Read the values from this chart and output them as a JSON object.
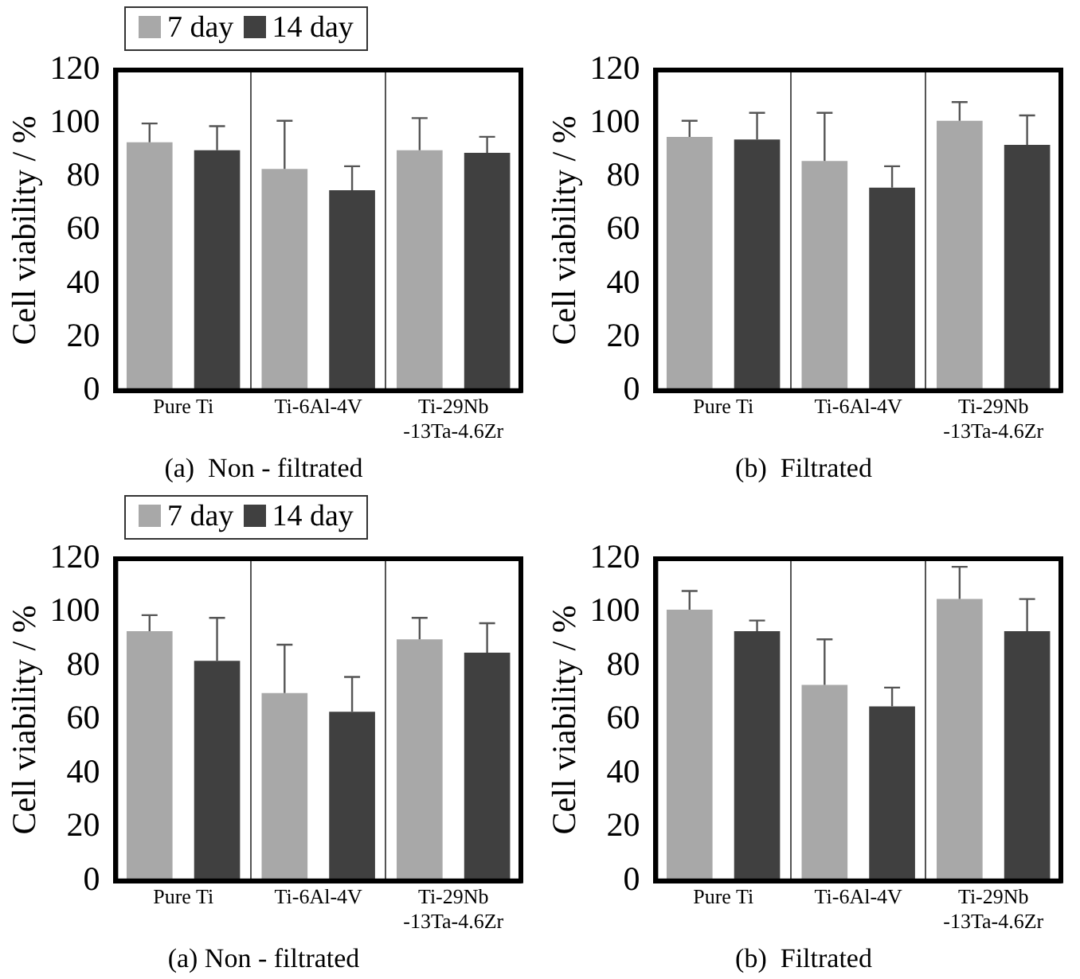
{
  "chart_data": [
    {
      "type": "bar",
      "title": "(a)  Non - filtrated",
      "ylabel": "Cell viability / %",
      "categories": [
        "Pure Ti",
        "Ti-6Al-4V",
        "Ti-29Nb -13Ta-4.6Zr"
      ],
      "series": [
        {
          "name": "7 day",
          "color": "#a8a8a8",
          "values": [
            93,
            83,
            90
          ],
          "errors": [
            7,
            18,
            12
          ]
        },
        {
          "name": "14 day",
          "color": "#404040",
          "values": [
            90,
            75,
            89
          ],
          "errors": [
            9,
            9,
            6
          ]
        }
      ],
      "ylim": [
        0,
        120
      ],
      "yticks": [
        0,
        20,
        40,
        60,
        80,
        100,
        120
      ],
      "grid": "x",
      "legend": "top"
    },
    {
      "type": "bar",
      "title": "(b)  Filtrated",
      "ylabel": "Cell viability / %",
      "categories": [
        "Pure Ti",
        "Ti-6Al-4V",
        "Ti-29Nb -13Ta-4.6Zr"
      ],
      "series": [
        {
          "color": "#a8a8a8",
          "values": [
            95,
            86,
            101
          ],
          "errors": [
            6,
            18,
            7
          ]
        },
        {
          "color": "#404040",
          "values": [
            94,
            76,
            92
          ],
          "errors": [
            10,
            8,
            11
          ]
        }
      ],
      "ylim": [
        0,
        120
      ],
      "yticks": [
        0,
        20,
        40,
        60,
        80,
        100,
        120
      ],
      "grid": "x"
    },
    {
      "type": "bar",
      "title": "(a) Non - filtrated",
      "ylabel": "Cell viability / %",
      "categories": [
        "Pure Ti",
        "Ti-6Al-4V",
        "Ti-29Nb -13Ta-4.6Zr"
      ],
      "series": [
        {
          "name": "7 day",
          "color": "#a8a8a8",
          "values": [
            93,
            70,
            90
          ],
          "errors": [
            6,
            18,
            8
          ]
        },
        {
          "name": "14 day",
          "color": "#404040",
          "values": [
            82,
            63,
            85
          ],
          "errors": [
            16,
            13,
            11
          ]
        }
      ],
      "ylim": [
        0,
        120
      ],
      "yticks": [
        0,
        20,
        40,
        60,
        80,
        100,
        120
      ],
      "grid": "x",
      "legend": "top"
    },
    {
      "type": "bar",
      "title": "(b)  Filtrated",
      "ylabel": "Cell viability / %",
      "categories": [
        "Pure Ti",
        "Ti-6Al-4V",
        "Ti-29Nb -13Ta-4.6Zr"
      ],
      "series": [
        {
          "color": "#a8a8a8",
          "values": [
            101,
            73,
            105
          ],
          "errors": [
            7,
            17,
            12
          ]
        },
        {
          "color": "#404040",
          "values": [
            93,
            65,
            93
          ],
          "errors": [
            4,
            7,
            12
          ]
        }
      ],
      "ylim": [
        0,
        120
      ],
      "yticks": [
        0,
        20,
        40,
        60,
        80,
        100,
        120
      ],
      "grid": "x"
    }
  ]
}
